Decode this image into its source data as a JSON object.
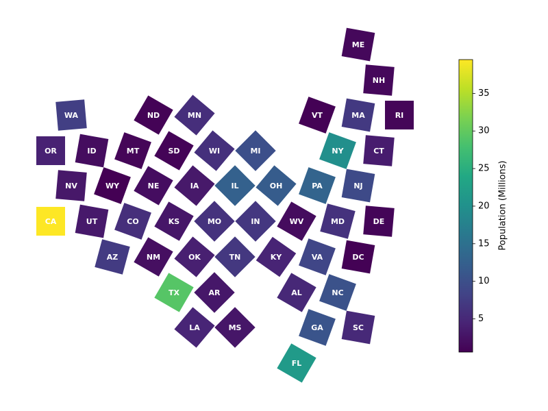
{
  "chart_data": {
    "type": "tile-map",
    "categories": [
      "ME",
      "NH",
      "WA",
      "ND",
      "MN",
      "VT",
      "MA",
      "RI",
      "OR",
      "ID",
      "MT",
      "SD",
      "WI",
      "MI",
      "NY",
      "CT",
      "NV",
      "WY",
      "NE",
      "IA",
      "IL",
      "OH",
      "PA",
      "NJ",
      "CA",
      "UT",
      "CO",
      "KS",
      "MO",
      "IN",
      "WV",
      "MD",
      "DE",
      "AZ",
      "NM",
      "OK",
      "TN",
      "KY",
      "VA",
      "DC",
      "TX",
      "AR",
      "AL",
      "NC",
      "LA",
      "MS",
      "GA",
      "SC",
      "FL"
    ],
    "values": [
      1.36,
      1.38,
      7.7,
      0.78,
      5.7,
      0.64,
      7.0,
      1.1,
      4.2,
      1.9,
      1.1,
      0.9,
      5.9,
      10.0,
      19.7,
      3.6,
      3.1,
      0.58,
      1.96,
      3.2,
      12.6,
      11.8,
      13.0,
      9.3,
      39.5,
      3.3,
      5.8,
      2.9,
      6.2,
      6.8,
      1.8,
      6.2,
      1.0,
      7.3,
      2.1,
      4.0,
      6.9,
      4.5,
      8.6,
      0.7,
      29.1,
      3.0,
      5.0,
      10.4,
      4.6,
      2.95,
      10.7,
      5.1,
      21.5
    ],
    "colormap": "viridis",
    "colorbar_label": "Population (Millions)",
    "clim": [
      0.58,
      39.5
    ],
    "cticks": [
      5,
      10,
      15,
      20,
      25,
      30,
      35
    ]
  }
}
